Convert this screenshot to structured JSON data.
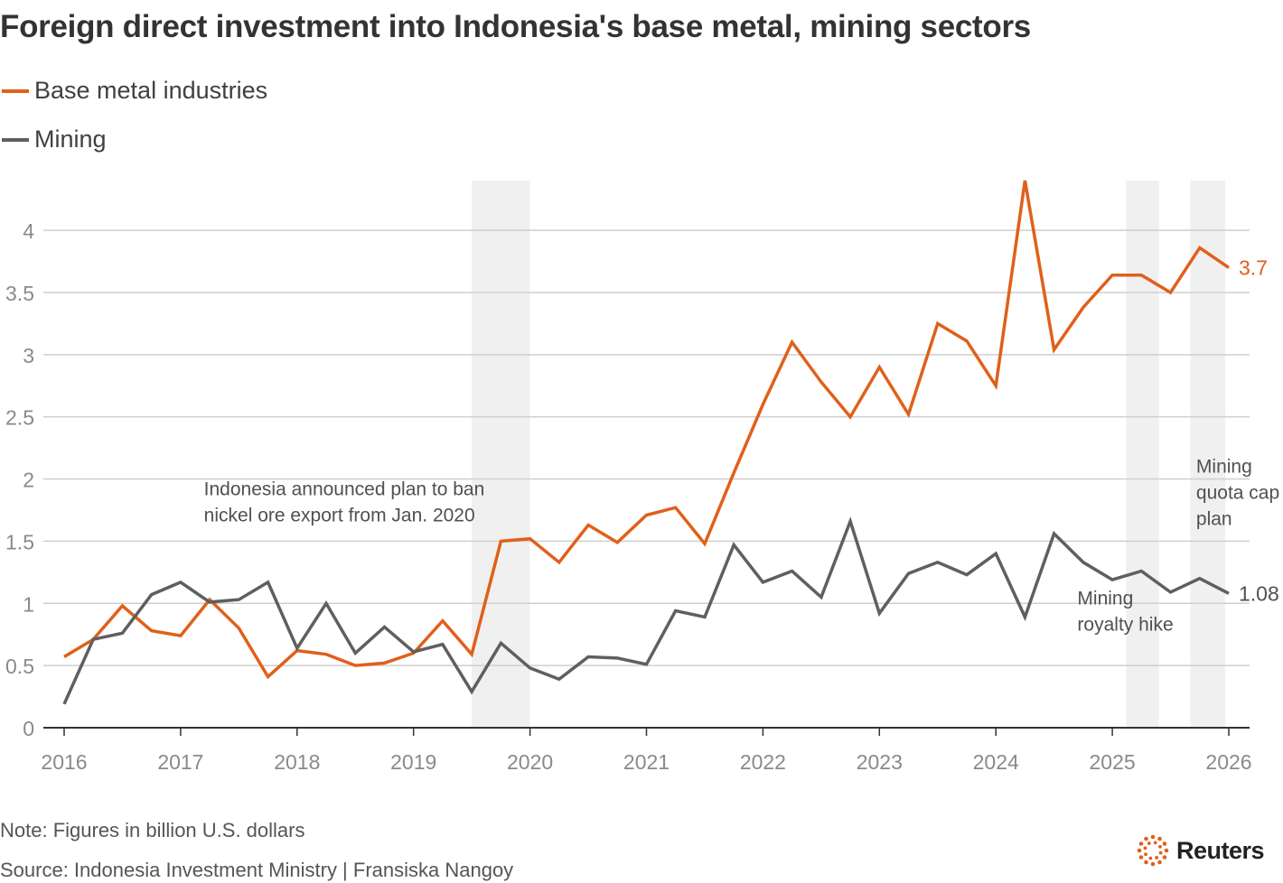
{
  "chart_data": {
    "type": "line",
    "title": "Foreign direct investment into Indonesia's base metal, mining sectors",
    "legend_placement": "top-left",
    "colors": {
      "base_metal": "#e0601a",
      "mining": "#5f5f5f",
      "grid": "#cfcfcf",
      "shade": "#f0f0f0"
    },
    "x_ticks": [
      "2016",
      "2017",
      "2018",
      "2019",
      "2020",
      "2021",
      "2022",
      "2023",
      "2024",
      "2025",
      "2026"
    ],
    "y_ticks": [
      "0",
      "0.5",
      "1",
      "1.5",
      "2",
      "2.5",
      "3",
      "3.5",
      "4"
    ],
    "xlim": [
      2016,
      2026
    ],
    "ylim": [
      0,
      4.4
    ],
    "grid": true,
    "series": [
      {
        "name": "Base metal industries",
        "end_label": "3.7",
        "x": [
          2016,
          2016.25,
          2016.5,
          2016.75,
          2017,
          2017.25,
          2017.5,
          2017.75,
          2018,
          2018.25,
          2018.5,
          2018.75,
          2019,
          2019.25,
          2019.5,
          2019.75,
          2020,
          2020.25,
          2020.5,
          2020.75,
          2021,
          2021.25,
          2021.5,
          2021.75,
          2022,
          2022.25,
          2022.5,
          2022.75,
          2023,
          2023.25,
          2023.5,
          2023.75,
          2024,
          2024.25,
          2024.5,
          2024.75,
          2025,
          2025.25,
          2025.5,
          2025.75,
          2026
        ],
        "values": [
          0.57,
          0.71,
          0.98,
          0.78,
          0.74,
          1.03,
          0.8,
          0.41,
          0.62,
          0.59,
          0.5,
          0.52,
          0.6,
          0.86,
          0.59,
          1.5,
          1.52,
          1.33,
          1.63,
          1.49,
          1.71,
          1.77,
          1.48,
          2.05,
          2.6,
          3.1,
          2.78,
          2.5,
          2.9,
          2.52,
          3.25,
          3.11,
          2.75,
          4.4,
          3.04,
          3.38,
          3.64,
          3.64,
          3.5,
          3.86,
          3.7
        ]
      },
      {
        "name": "Mining",
        "end_label": "1.08",
        "x": [
          2016,
          2016.25,
          2016.5,
          2016.75,
          2017,
          2017.25,
          2017.5,
          2017.75,
          2018,
          2018.25,
          2018.5,
          2018.75,
          2019,
          2019.25,
          2019.5,
          2019.75,
          2020,
          2020.25,
          2020.5,
          2020.75,
          2021,
          2021.25,
          2021.5,
          2021.75,
          2022,
          2022.25,
          2022.5,
          2022.75,
          2023,
          2023.25,
          2023.5,
          2023.75,
          2024,
          2024.25,
          2024.5,
          2024.75,
          2025,
          2025.25,
          2025.5,
          2025.75,
          2026
        ],
        "values": [
          0.19,
          0.71,
          0.76,
          1.07,
          1.17,
          1.01,
          1.03,
          1.17,
          0.64,
          1.0,
          0.6,
          0.81,
          0.61,
          0.67,
          0.29,
          0.68,
          0.48,
          0.39,
          0.57,
          0.56,
          0.51,
          0.94,
          0.89,
          1.47,
          1.17,
          1.26,
          1.05,
          1.66,
          0.92,
          1.24,
          1.33,
          1.23,
          1.4,
          0.89,
          1.56,
          1.33,
          1.19,
          1.26,
          1.09,
          1.2,
          1.08
        ]
      }
    ],
    "shaded_periods": [
      {
        "x0": 2019.5,
        "x1": 2020.0
      },
      {
        "x0": 2025.12,
        "x1": 2025.4
      },
      {
        "x0": 2025.67,
        "x1": 2025.97
      }
    ],
    "annotations": [
      {
        "lines": [
          "Indonesia announced plan to ban",
          "nickel ore export from Jan. 2020"
        ],
        "x": 2017.2,
        "y": 1.87
      },
      {
        "lines": [
          "Mining",
          "royalty hike"
        ],
        "x": 2024.7,
        "y": 0.99
      },
      {
        "lines": [
          "Mining",
          "quota cap",
          "plan"
        ],
        "x": 2025.72,
        "y": 2.05
      }
    ]
  },
  "footer": {
    "note": "Note: Figures in billion U.S. dollars",
    "source": "Source: Indonesia Investment Ministry | Fransiska Nangoy",
    "brand": "Reuters"
  }
}
